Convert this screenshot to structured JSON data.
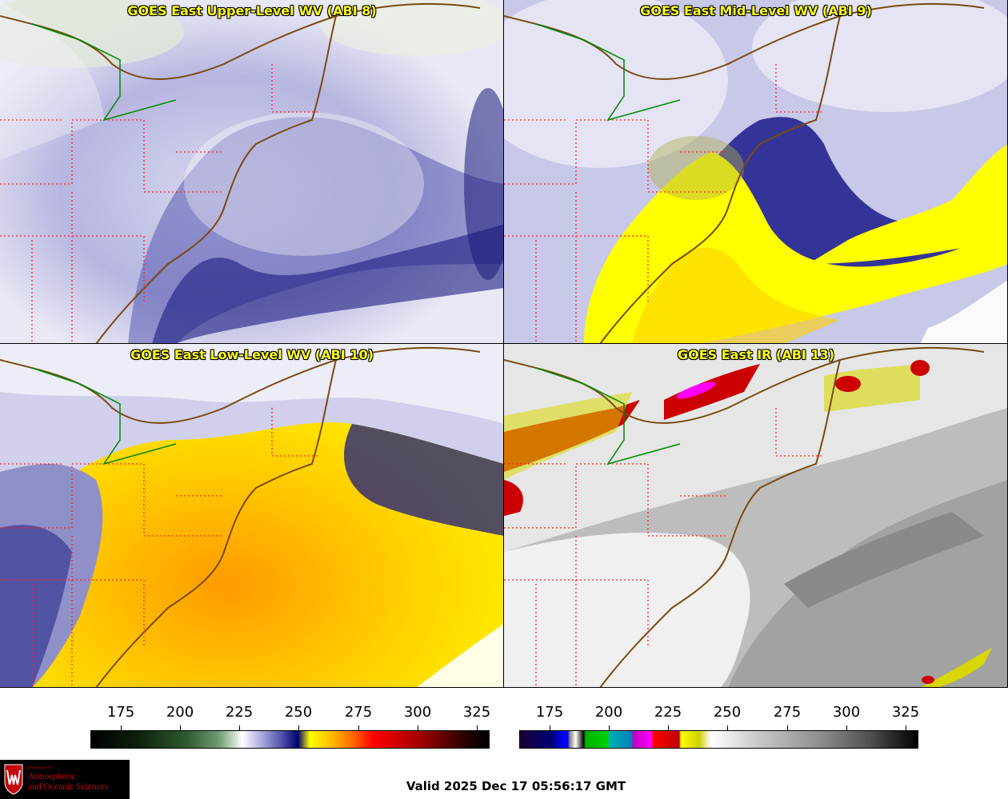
{
  "panels": [
    {
      "id": "upper",
      "title": "GOES East Upper-Level WV (ABI 8)"
    },
    {
      "id": "mid",
      "title": "GOES East Mid-Level WV (ABI 9)"
    },
    {
      "id": "low",
      "title": "GOES East Low-Level WV (ABI 10)"
    },
    {
      "id": "ir",
      "title": "GOES East IR (ABI 13)"
    }
  ],
  "colorbars": {
    "water_vapor": {
      "ticks": [
        "175",
        "200",
        "225",
        "250",
        "275",
        "300",
        "325"
      ]
    },
    "infrared": {
      "ticks": [
        "175",
        "200",
        "225",
        "250",
        "275",
        "300",
        "325"
      ]
    }
  },
  "logo": {
    "dept": "Department of",
    "line1": "Atmospheric",
    "line2": "and Oceanic Sciences"
  },
  "valid_time": "Valid 2025 Dec 17 05:56:17 GMT",
  "colors": {
    "title_text": "#ffff22",
    "coastline": "#7a4a10",
    "state_borders": "#ff2222",
    "intl_border": "#008800",
    "logo_red": "#c5050c"
  },
  "icons": [
    "university-crest-icon"
  ]
}
